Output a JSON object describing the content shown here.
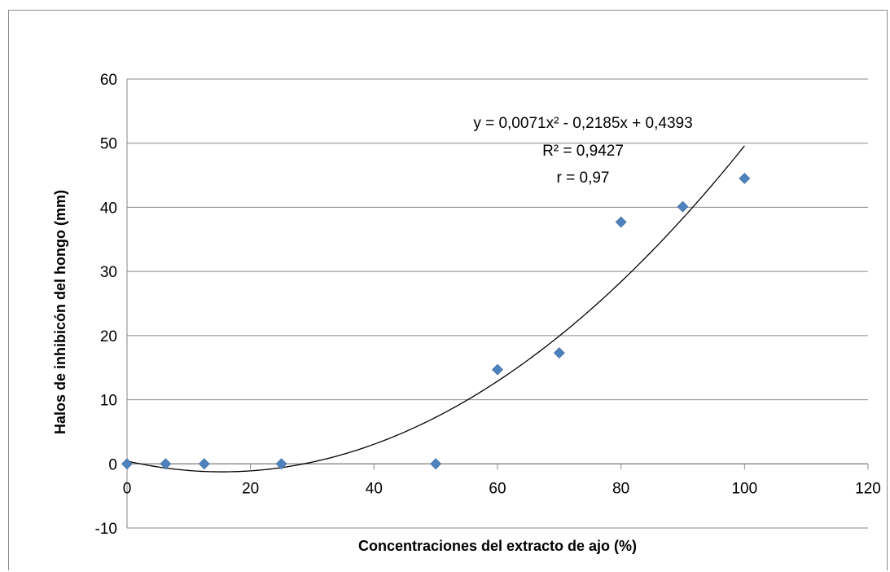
{
  "chart_data": {
    "type": "scatter",
    "title": "",
    "xlabel": "Concentraciones del extracto de ajo (%)",
    "ylabel": "Halos de inhibicón del hongo (mm)",
    "xlim": [
      0,
      120
    ],
    "ylim": [
      -10,
      60
    ],
    "xticks": [
      0,
      20,
      40,
      60,
      80,
      100,
      120
    ],
    "yticks": [
      -10,
      0,
      10,
      20,
      30,
      40,
      50,
      60
    ],
    "grid": "horizontal",
    "legend": "none",
    "marker_color": "#4f81bd",
    "points": [
      {
        "x": 0,
        "y": 0
      },
      {
        "x": 6.25,
        "y": 0
      },
      {
        "x": 12.5,
        "y": 0
      },
      {
        "x": 25,
        "y": 0
      },
      {
        "x": 50,
        "y": 0
      },
      {
        "x": 60,
        "y": 14.7
      },
      {
        "x": 70,
        "y": 17.3
      },
      {
        "x": 80,
        "y": 37.7
      },
      {
        "x": 90,
        "y": 40.1
      },
      {
        "x": 100,
        "y": 44.5
      }
    ],
    "trendline": {
      "type": "polynomial",
      "coefficients": {
        "a": 0.0071,
        "b": -0.2185,
        "c": 0.4393
      },
      "x_range": [
        0,
        100
      ],
      "color": "#000000"
    },
    "annotations": [
      "y = 0,0071x² - 0,2185x + 0,4393",
      "R² = 0,9427",
      "r = 0,97"
    ]
  }
}
